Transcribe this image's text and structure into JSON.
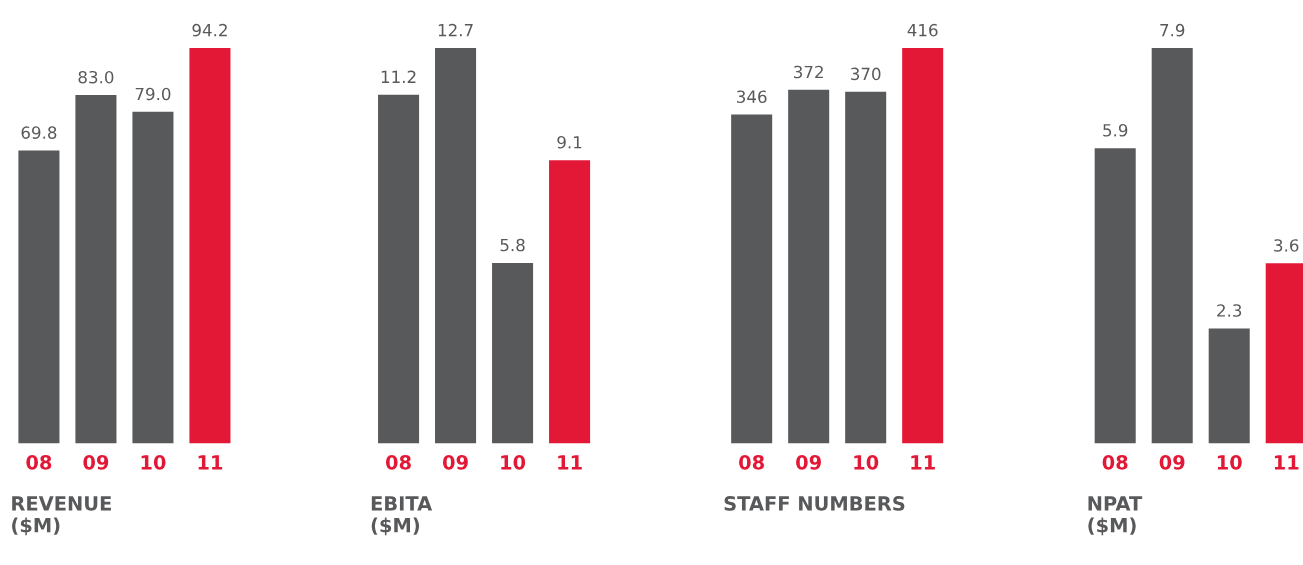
{
  "chart_data": [
    {
      "type": "bar",
      "title": "REVENUE\n($M)",
      "categories": [
        "08",
        "09",
        "10",
        "11"
      ],
      "values": [
        69.8,
        83.0,
        79.0,
        94.2
      ],
      "value_labels": [
        "69.8",
        "83.0",
        "79.0",
        "94.2"
      ],
      "colors": [
        "#58595b",
        "#58595b",
        "#58595b",
        "#e31837"
      ],
      "grid": false,
      "legend": false
    },
    {
      "type": "bar",
      "title": "EBITA\n($M)",
      "categories": [
        "08",
        "09",
        "10",
        "11"
      ],
      "values": [
        11.2,
        12.7,
        5.8,
        9.1
      ],
      "data_labels": true,
      "colors": [
        "#58595b",
        "#58595b",
        "#58595b",
        "#e31837"
      ],
      "grid": false,
      "legend": false
    },
    {
      "type": "bar",
      "title": "STAFF NUMBERS",
      "categories": [
        "08",
        "09",
        "10",
        "11"
      ],
      "values": [
        346,
        372,
        370,
        416
      ],
      "data_labels": true,
      "colors": [
        "#58595b",
        "#58595b",
        "#58595b",
        "#e31837"
      ],
      "grid": false,
      "legend": false
    },
    {
      "type": "bar",
      "title": "NPAT\n($M)",
      "categories": [
        "08",
        "09",
        "10",
        "11"
      ],
      "values": [
        5.9,
        7.9,
        2.3,
        3.6
      ],
      "data_labels": true,
      "colors": [
        "#58595b",
        "#58595b",
        "#58595b",
        "#e31837"
      ],
      "grid": false,
      "legend": false
    }
  ]
}
